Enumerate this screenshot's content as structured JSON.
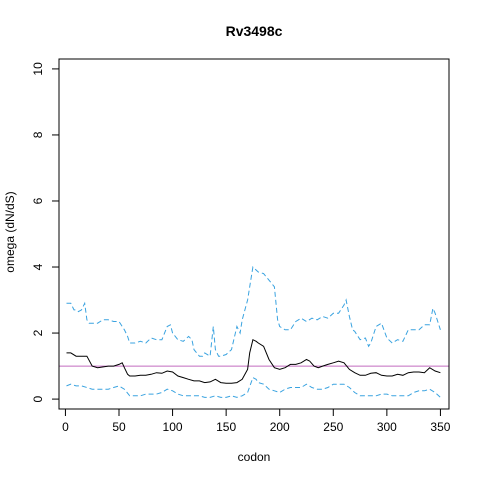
{
  "chart_data": {
    "type": "line",
    "title": "Rv3498c",
    "xlabel": "codon",
    "ylabel": "omega (dN/dS)",
    "xlim": [
      -6,
      358
    ],
    "ylim": [
      -0.3,
      10.3
    ],
    "xticks": [
      0,
      50,
      100,
      150,
      200,
      250,
      300,
      350
    ],
    "yticks": [
      0,
      2,
      4,
      6,
      8,
      10
    ],
    "grid": false,
    "reference_line": {
      "y": 1,
      "color": "#c26bbf"
    },
    "series": [
      {
        "style": "solid",
        "color": "#000000",
        "x": [
          1,
          5,
          10,
          15,
          20,
          25,
          30,
          40,
          45,
          50,
          53,
          55,
          58,
          60,
          65,
          70,
          75,
          80,
          85,
          90,
          95,
          100,
          105,
          110,
          115,
          120,
          125,
          130,
          135,
          140,
          145,
          150,
          155,
          160,
          165,
          170,
          172,
          175,
          178,
          180,
          185,
          190,
          195,
          200,
          205,
          210,
          215,
          220,
          225,
          228,
          232,
          236,
          240,
          245,
          250,
          255,
          260,
          265,
          270,
          275,
          280,
          285,
          290,
          295,
          300,
          305,
          310,
          315,
          320,
          325,
          330,
          335,
          340,
          345,
          350
        ],
        "values": [
          1.4,
          1.4,
          1.3,
          1.3,
          1.3,
          1.0,
          0.95,
          1.0,
          1.0,
          1.05,
          1.1,
          0.95,
          0.75,
          0.7,
          0.7,
          0.72,
          0.72,
          0.75,
          0.8,
          0.78,
          0.85,
          0.82,
          0.7,
          0.65,
          0.6,
          0.55,
          0.55,
          0.5,
          0.52,
          0.6,
          0.5,
          0.48,
          0.48,
          0.5,
          0.6,
          0.9,
          1.4,
          1.8,
          1.75,
          1.7,
          1.6,
          1.2,
          0.95,
          0.9,
          0.95,
          1.05,
          1.05,
          1.1,
          1.2,
          1.15,
          1.0,
          0.95,
          1.0,
          1.05,
          1.1,
          1.15,
          1.1,
          0.9,
          0.8,
          0.72,
          0.72,
          0.78,
          0.8,
          0.72,
          0.7,
          0.7,
          0.75,
          0.72,
          0.8,
          0.82,
          0.82,
          0.8,
          0.95,
          0.85,
          0.8
        ]
      },
      {
        "style": "dashed",
        "color": "#3aa3e0",
        "x": [
          1,
          5,
          8,
          10,
          12,
          15,
          18,
          20,
          22,
          25,
          30,
          35,
          40,
          45,
          50,
          55,
          58,
          60,
          65,
          70,
          75,
          80,
          85,
          90,
          95,
          98,
          100,
          105,
          110,
          115,
          118,
          120,
          125,
          128,
          130,
          135,
          138,
          140,
          143,
          145,
          150,
          155,
          160,
          163,
          165,
          170,
          172,
          175,
          180,
          185,
          190,
          195,
          198,
          200,
          205,
          210,
          215,
          220,
          225,
          230,
          235,
          240,
          245,
          250,
          255,
          260,
          262,
          265,
          268,
          270,
          275,
          280,
          283,
          285,
          290,
          295,
          300,
          305,
          310,
          315,
          320,
          325,
          330,
          335,
          340,
          343,
          345,
          350
        ],
        "values": [
          2.9,
          2.9,
          2.7,
          2.7,
          2.65,
          2.7,
          2.9,
          2.4,
          2.3,
          2.3,
          2.3,
          2.4,
          2.4,
          2.35,
          2.35,
          2.1,
          1.9,
          1.7,
          1.7,
          1.75,
          1.7,
          1.85,
          1.8,
          1.8,
          2.2,
          2.25,
          2.0,
          1.8,
          1.75,
          1.9,
          1.8,
          1.5,
          1.3,
          1.3,
          1.4,
          1.3,
          2.2,
          1.5,
          1.3,
          1.3,
          1.35,
          1.5,
          2.2,
          2.0,
          2.4,
          3.0,
          3.4,
          4.0,
          3.85,
          3.8,
          3.6,
          3.4,
          2.4,
          2.2,
          2.1,
          2.1,
          2.35,
          2.45,
          2.35,
          2.45,
          2.4,
          2.5,
          2.45,
          2.6,
          2.6,
          2.85,
          3.0,
          2.5,
          2.1,
          2.05,
          1.8,
          1.85,
          1.6,
          1.7,
          2.2,
          2.3,
          1.85,
          1.7,
          1.8,
          1.75,
          2.1,
          2.1,
          2.1,
          2.25,
          2.25,
          2.75,
          2.6,
          2.1
        ]
      },
      {
        "style": "dashed",
        "color": "#3aa3e0",
        "x": [
          1,
          5,
          10,
          15,
          20,
          25,
          30,
          35,
          40,
          45,
          50,
          55,
          60,
          65,
          70,
          75,
          80,
          85,
          90,
          95,
          100,
          105,
          110,
          115,
          120,
          125,
          130,
          135,
          140,
          145,
          150,
          155,
          160,
          165,
          170,
          175,
          178,
          180,
          185,
          190,
          195,
          200,
          205,
          210,
          215,
          220,
          225,
          230,
          235,
          240,
          245,
          250,
          255,
          260,
          265,
          270,
          275,
          280,
          285,
          290,
          295,
          300,
          305,
          310,
          315,
          320,
          325,
          330,
          335,
          340,
          345,
          350
        ],
        "values": [
          0.4,
          0.45,
          0.4,
          0.4,
          0.35,
          0.3,
          0.3,
          0.3,
          0.3,
          0.35,
          0.4,
          0.3,
          0.1,
          0.1,
          0.1,
          0.15,
          0.15,
          0.15,
          0.2,
          0.3,
          0.25,
          0.15,
          0.1,
          0.1,
          0.1,
          0.1,
          0.05,
          0.05,
          0.1,
          0.05,
          0.05,
          0.1,
          0.05,
          0.1,
          0.2,
          0.65,
          0.6,
          0.5,
          0.45,
          0.3,
          0.25,
          0.2,
          0.3,
          0.35,
          0.35,
          0.35,
          0.45,
          0.35,
          0.3,
          0.3,
          0.35,
          0.45,
          0.45,
          0.45,
          0.35,
          0.2,
          0.1,
          0.1,
          0.1,
          0.1,
          0.15,
          0.15,
          0.1,
          0.1,
          0.1,
          0.1,
          0.2,
          0.25,
          0.25,
          0.3,
          0.2,
          0.05
        ]
      }
    ]
  }
}
